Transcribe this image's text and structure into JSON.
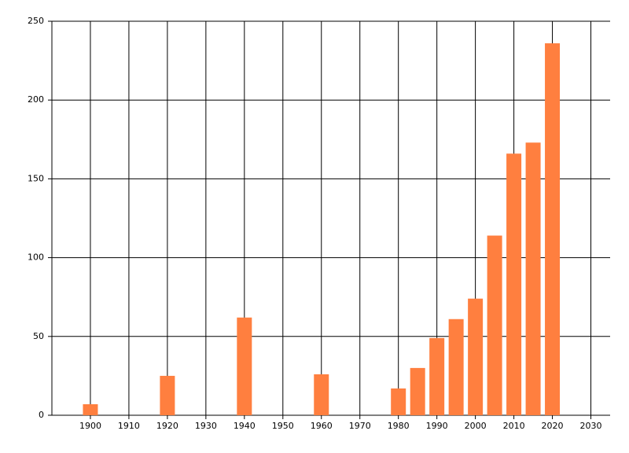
{
  "chart_data": {
    "type": "bar",
    "x": [
      1900,
      1920,
      1940,
      1960,
      1980,
      1985,
      1990,
      1995,
      2000,
      2005,
      2010,
      2015,
      2020
    ],
    "values": [
      7,
      25,
      62,
      26,
      17,
      30,
      49,
      61,
      74,
      114,
      166,
      173,
      236
    ],
    "color": "#ff7f3f",
    "xlim": [
      1890,
      2035
    ],
    "xticks": [
      1900,
      1910,
      1920,
      1930,
      1940,
      1950,
      1960,
      1970,
      1980,
      1990,
      2000,
      2010,
      2020,
      2030
    ],
    "ylim": [
      0,
      250
    ],
    "yticks": [
      0,
      50,
      100,
      150,
      200,
      250
    ],
    "grid": true
  }
}
